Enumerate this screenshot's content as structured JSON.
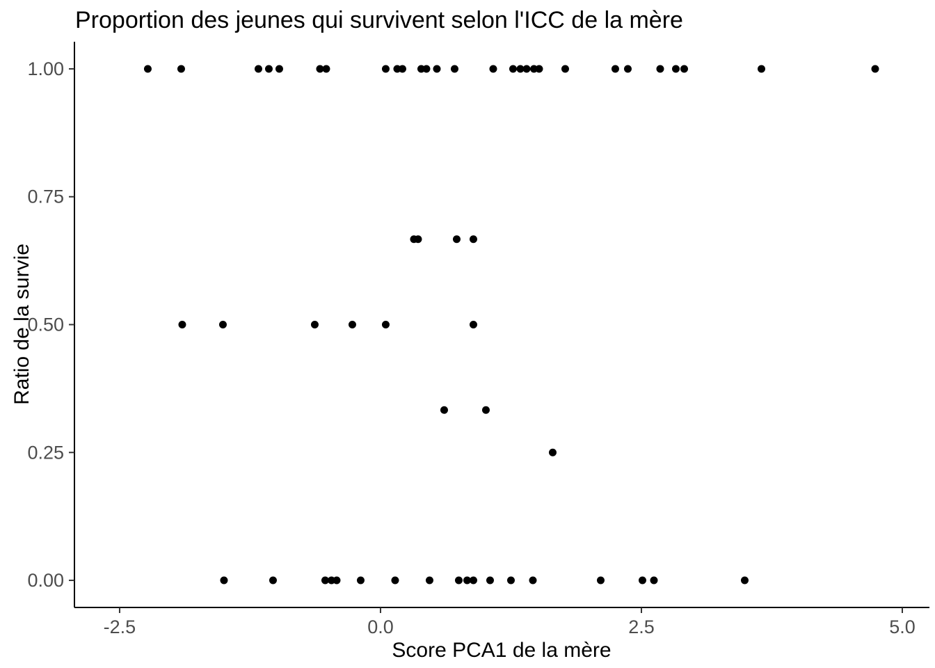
{
  "chart_data": {
    "type": "scatter",
    "title": "Proportion des jeunes qui survivent selon l'ICC de la mère",
    "xlabel": "Score PCA1 de la mère",
    "ylabel": "Ratio de la survie",
    "x_ticks": [
      -2.5,
      0.0,
      2.5,
      5.0
    ],
    "x_tick_labels": [
      "-2.5",
      "0.0",
      "2.5",
      "5.0"
    ],
    "y_ticks": [
      0.0,
      0.25,
      0.5,
      0.75,
      1.0
    ],
    "y_tick_labels": [
      "0.00",
      "0.25",
      "0.50",
      "0.75",
      "1.00"
    ],
    "xlim": [
      -2.933,
      5.26
    ],
    "ylim": [
      -0.053,
      1.053
    ],
    "grid": false,
    "legend": false,
    "point_color": "#000000",
    "axis_line_color": "#000000",
    "tick_label_color": "#4d4d4d",
    "points": [
      [
        -2.23,
        1.0
      ],
      [
        -1.91,
        1.0
      ],
      [
        -1.17,
        1.0
      ],
      [
        -1.07,
        1.0
      ],
      [
        -0.97,
        1.0
      ],
      [
        -0.58,
        1.0
      ],
      [
        -0.52,
        1.0
      ],
      [
        0.05,
        1.0
      ],
      [
        0.16,
        1.0
      ],
      [
        0.21,
        1.0
      ],
      [
        0.39,
        1.0
      ],
      [
        0.44,
        1.0
      ],
      [
        0.54,
        1.0
      ],
      [
        0.71,
        1.0
      ],
      [
        1.08,
        1.0
      ],
      [
        1.27,
        1.0
      ],
      [
        1.34,
        1.0
      ],
      [
        1.4,
        1.0
      ],
      [
        1.47,
        1.0
      ],
      [
        1.52,
        1.0
      ],
      [
        1.77,
        1.0
      ],
      [
        2.25,
        1.0
      ],
      [
        2.37,
        1.0
      ],
      [
        2.68,
        1.0
      ],
      [
        2.83,
        1.0
      ],
      [
        2.91,
        1.0
      ],
      [
        3.65,
        1.0
      ],
      [
        4.74,
        1.0
      ],
      [
        0.32,
        0.667
      ],
      [
        0.36,
        0.667
      ],
      [
        0.73,
        0.667
      ],
      [
        0.89,
        0.667
      ],
      [
        -1.9,
        0.5
      ],
      [
        -1.51,
        0.5
      ],
      [
        -0.63,
        0.5
      ],
      [
        -0.27,
        0.5
      ],
      [
        0.05,
        0.5
      ],
      [
        0.89,
        0.5
      ],
      [
        0.61,
        0.333
      ],
      [
        1.01,
        0.333
      ],
      [
        1.65,
        0.25
      ],
      [
        -1.5,
        0.0
      ],
      [
        -1.03,
        0.0
      ],
      [
        -0.53,
        0.0
      ],
      [
        -0.47,
        0.0
      ],
      [
        -0.42,
        0.0
      ],
      [
        -0.19,
        0.0
      ],
      [
        0.14,
        0.0
      ],
      [
        0.47,
        0.0
      ],
      [
        0.75,
        0.0
      ],
      [
        0.83,
        0.0
      ],
      [
        0.89,
        0.0
      ],
      [
        1.05,
        0.0
      ],
      [
        1.25,
        0.0
      ],
      [
        1.46,
        0.0
      ],
      [
        2.11,
        0.0
      ],
      [
        2.51,
        0.0
      ],
      [
        2.62,
        0.0
      ],
      [
        3.49,
        0.0
      ]
    ]
  }
}
